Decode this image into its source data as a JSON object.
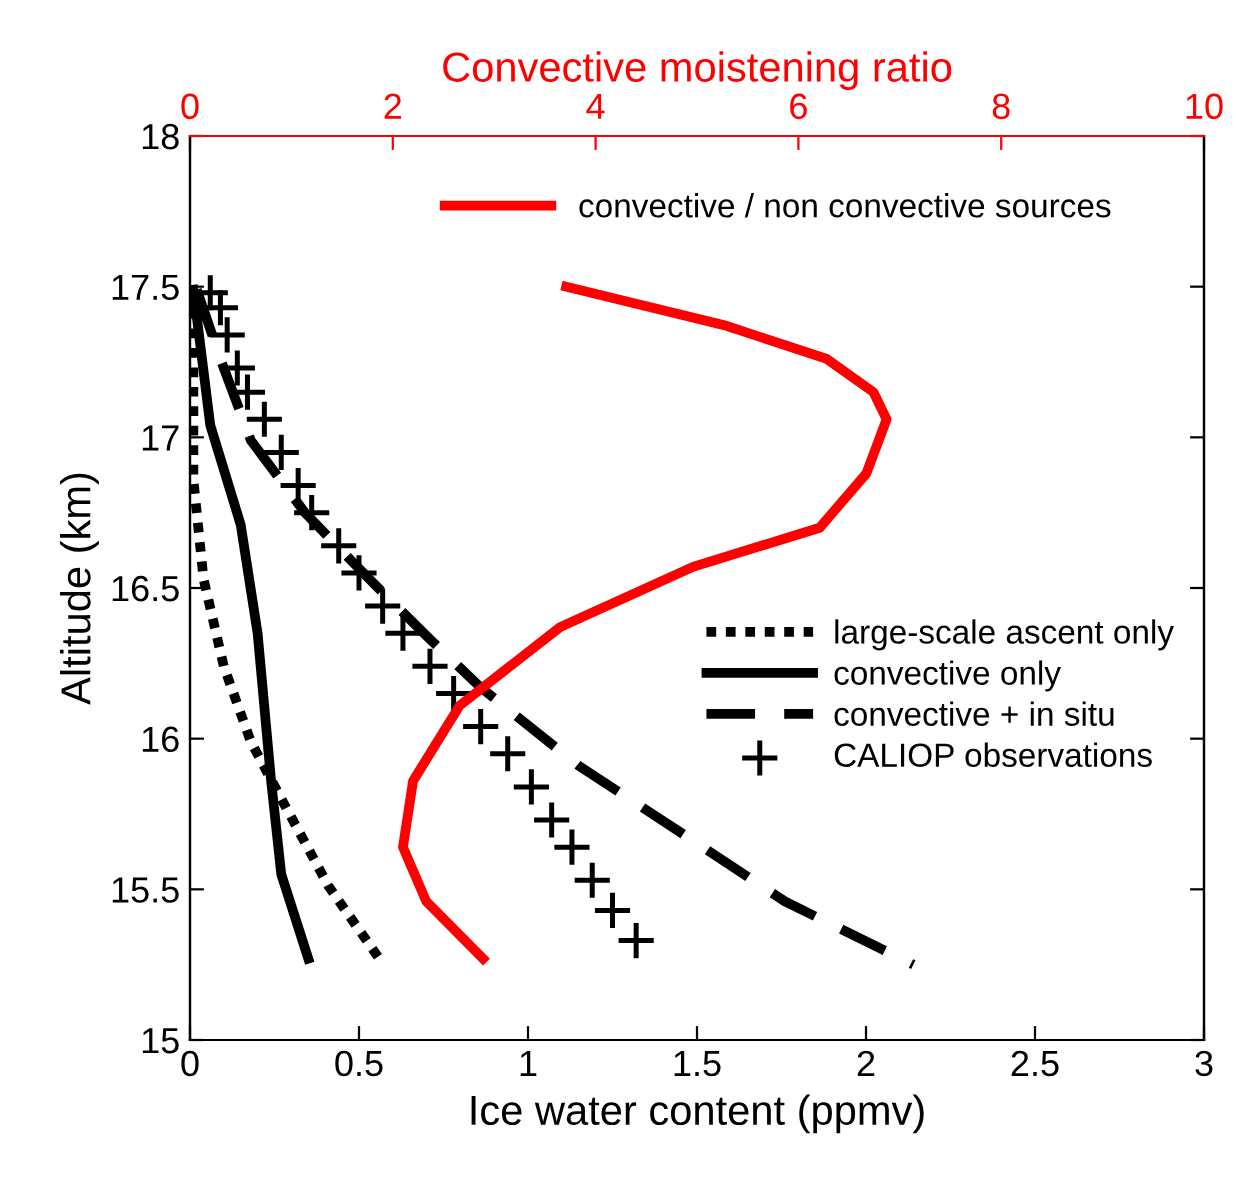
{
  "chart_data": {
    "type": "line",
    "xlabel": "Ice water content (ppmv)",
    "ylabel": "Altitude (km)",
    "x2label": "Convective moistening ratio",
    "xlim": [
      0,
      3
    ],
    "xticks": [
      0,
      0.5,
      1,
      1.5,
      2,
      2.5,
      3
    ],
    "x2lim": [
      0,
      10
    ],
    "x2ticks": [
      0,
      2,
      4,
      6,
      8,
      10
    ],
    "ylim": [
      15,
      18
    ],
    "yticks": [
      15,
      15.5,
      16,
      16.5,
      17,
      17.5,
      18
    ],
    "grid": false,
    "legend": "right",
    "series": [
      {
        "name": "large-scale ascent only",
        "color": "#000000",
        "line_style": "dotted",
        "x": [
          0.01,
          0.01,
          0.04,
          0.1,
          0.18,
          0.28,
          0.41,
          0.56
        ],
        "values": [
          17.49,
          16.86,
          16.53,
          16.24,
          15.99,
          15.78,
          15.51,
          15.27
        ]
      },
      {
        "name": "convective only",
        "color": "#000000",
        "line_style": "solid",
        "x": [
          0.01,
          0.06,
          0.15,
          0.2,
          0.24,
          0.27,
          0.35
        ],
        "values": [
          17.49,
          17.04,
          16.71,
          16.35,
          15.86,
          15.55,
          15.27
        ]
      },
      {
        "name": "convective + in situ",
        "color": "#000000",
        "line_style": "dashed",
        "x": [
          0.02,
          0.09,
          0.18,
          0.34,
          0.53,
          0.71,
          0.86,
          1.15,
          1.45,
          1.76,
          2.14
        ],
        "values": [
          17.49,
          17.26,
          16.99,
          16.75,
          16.53,
          16.33,
          16.17,
          15.91,
          15.69,
          15.46,
          15.25
        ]
      },
      {
        "name": "CALIOP observations",
        "type": "scatter",
        "marker": "cross",
        "color": "#000000",
        "x": [
          0.06,
          0.09,
          0.11,
          0.14,
          0.17,
          0.22,
          0.27,
          0.32,
          0.36,
          0.44,
          0.5,
          0.57,
          0.63,
          0.71,
          0.78,
          0.86,
          0.94,
          1.01,
          1.07,
          1.13,
          1.19,
          1.25,
          1.32
        ],
        "values": [
          17.48,
          17.43,
          17.34,
          17.23,
          17.15,
          17.06,
          16.95,
          16.84,
          16.75,
          16.64,
          16.55,
          16.44,
          16.35,
          16.24,
          16.15,
          16.04,
          15.95,
          15.84,
          15.73,
          15.64,
          15.53,
          15.43,
          15.33
        ]
      },
      {
        "name": "convective / non convective sources",
        "axis": "x2",
        "color": "#ff0000",
        "line_style": "solid",
        "x": [
          3.71,
          5.29,
          6.28,
          6.74,
          6.87,
          6.67,
          6.21,
          4.96,
          3.65,
          2.66,
          2.2,
          2.1,
          2.33,
          2.89
        ],
        "values": [
          17.5,
          17.37,
          17.26,
          17.15,
          17.06,
          16.88,
          16.7,
          16.57,
          16.37,
          16.11,
          15.86,
          15.64,
          15.46,
          15.27
        ]
      }
    ]
  }
}
